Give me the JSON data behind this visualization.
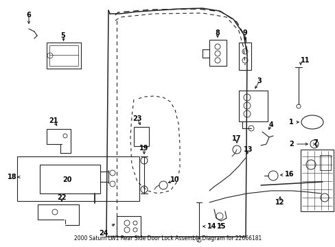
{
  "title": "2000 Saturn LW1 Rear Side Door Lock Assembly Diagram for 22666181",
  "bg_color": "#ffffff",
  "fig_width": 4.89,
  "fig_height": 3.6,
  "dpi": 100,
  "text_color": "#000000",
  "line_color": "#222222",
  "line_width": 0.8,
  "label_fontsize": 7.0
}
